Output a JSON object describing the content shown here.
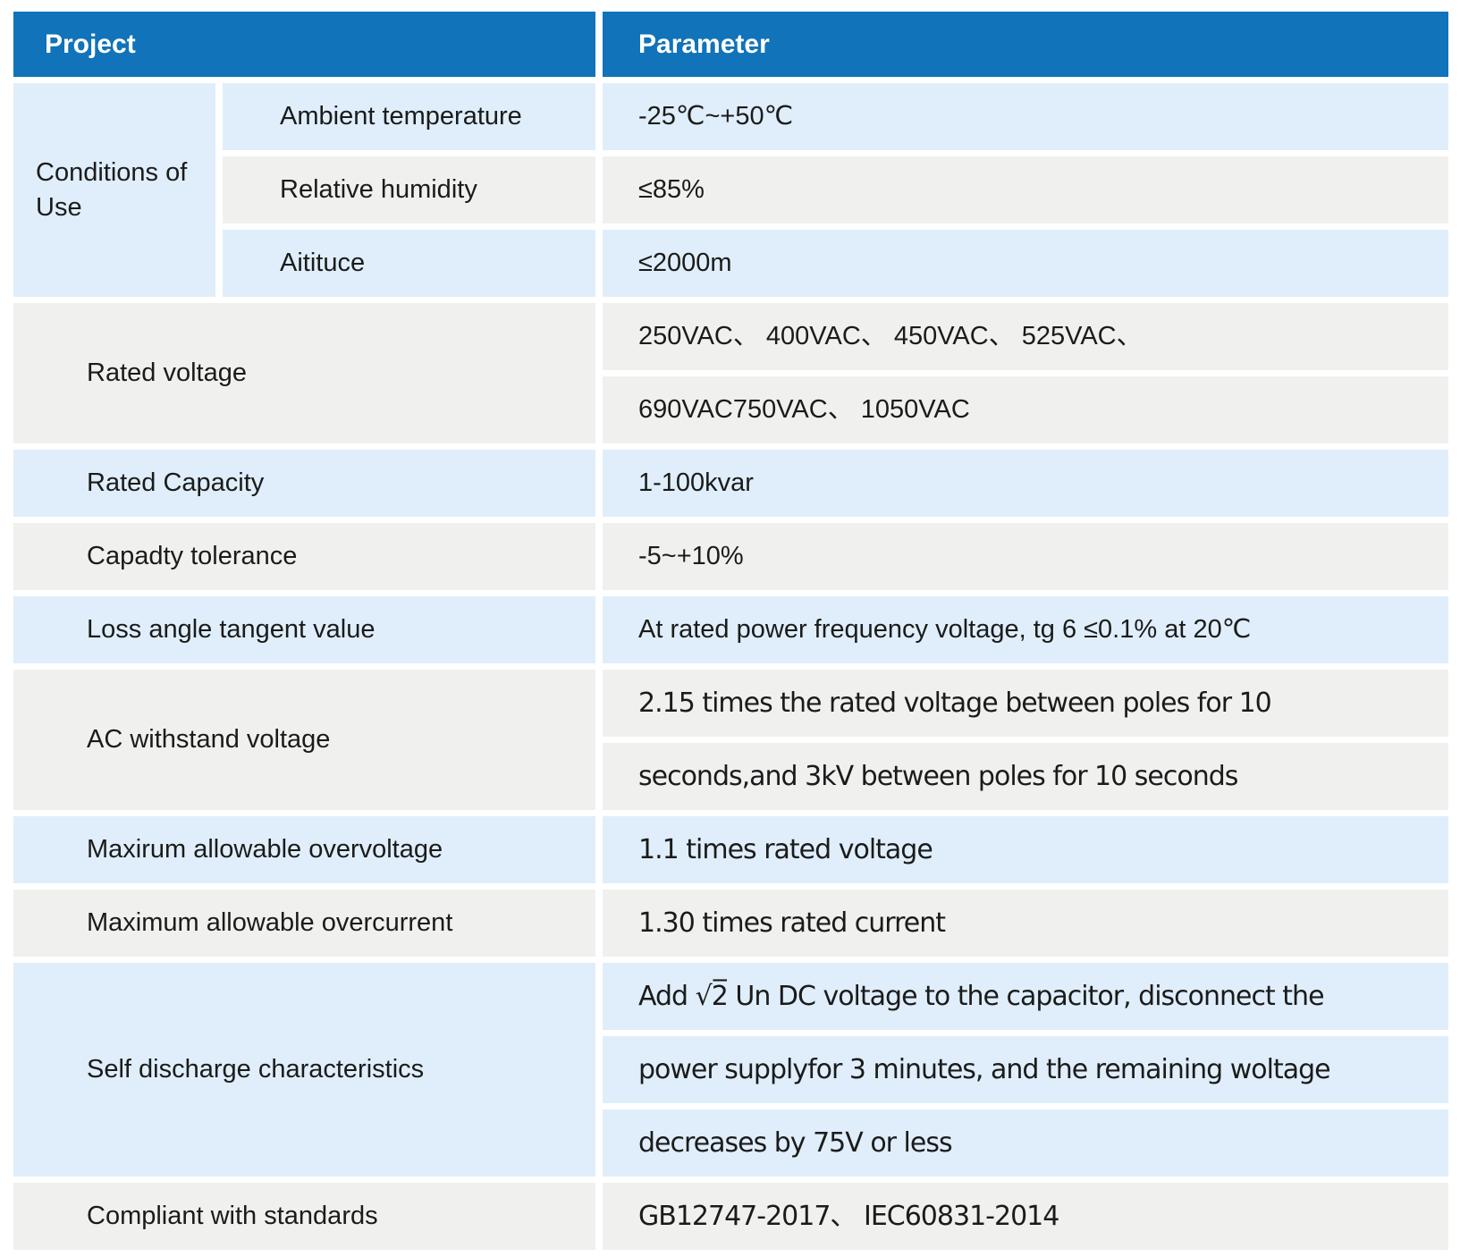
{
  "header": {
    "project": "Project",
    "parameter": "Parameter"
  },
  "colors": {
    "header_bg": "#1173b9",
    "header_text": "#ffffff",
    "row_blue": "#dfeefa",
    "row_gray": "#f0f1ef",
    "text": "#1b1b1b"
  },
  "groups": [
    {
      "label": "Conditions of Use",
      "rows": [
        {
          "sub": "Ambient temperature",
          "value": "-25℃~+50℃"
        },
        {
          "sub": "Relative humidity",
          "value": "≤85%"
        },
        {
          "sub": "Aitituce",
          "value": "≤2000m"
        }
      ]
    },
    {
      "label": "Rated voltage",
      "values": [
        "250VAC、 400VAC、 450VAC、 525VAC、",
        "690VAC750VAC、 1050VAC"
      ]
    },
    {
      "label": "Rated Capacity",
      "values": [
        "1-100kvar"
      ]
    },
    {
      "label": "Capadty tolerance",
      "values": [
        "-5~+10%"
      ]
    },
    {
      "label": "Loss angle tangent value",
      "values": [
        "At rated power frequency voltage, tg 6 ≤0.1% at 20℃"
      ]
    },
    {
      "label": "AC withstand voltage",
      "values": [
        "2.15 times the rated voltage between poles for 10",
        "seconds,and 3kV between poles for 10 seconds"
      ]
    },
    {
      "label": "Maxirum allowable overvoltage",
      "values": [
        "1.1 times rated voltage"
      ]
    },
    {
      "label": "Maximum allowable overcurrent",
      "values": [
        "1.30 times rated current"
      ]
    },
    {
      "label": "Self discharge characteristics",
      "values": [
        "Add √2̅ Un DC voltage to the capacitor, disconnect the",
        "power supplyfor 3 minutes, and the remaining woltage",
        "decreases by 75V or less"
      ]
    },
    {
      "label": "Compliant with standards",
      "values": [
        "GB12747-2017、 IEC60831-2014"
      ]
    }
  ]
}
